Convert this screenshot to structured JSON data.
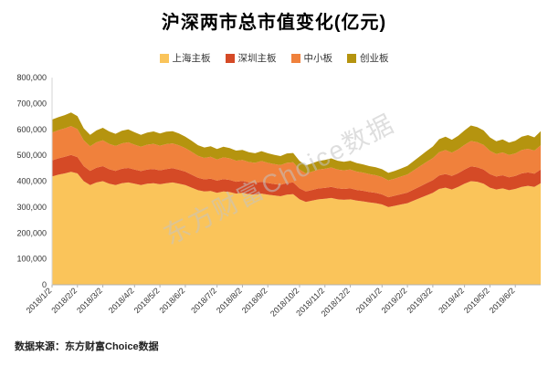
{
  "title": "沪深两市总市值变化(亿元)",
  "source_note": "数据来源：东方财富Choice数据",
  "watermark": "东方财富Choice数据",
  "colors": {
    "shanghai_main": "#FAC45A",
    "shenzhen_main": "#D54A26",
    "sme_board": "#F0813C",
    "chinext": "#B5940F",
    "axis_text": "#333333",
    "axis_line": "#b0b0b0",
    "watermark": "#c4c4c4"
  },
  "chart_data": {
    "type": "area",
    "stacked": true,
    "title": "沪深两市总市值变化(亿元)",
    "xlabel": "",
    "ylabel": "",
    "ylim": [
      0,
      800000
    ],
    "y_tick_step": 100000,
    "grid": false,
    "legend_position": "top",
    "x_tick_labels": [
      "2018/1/2",
      "2018/2/2",
      "2018/3/2",
      "2018/4/2",
      "2018/5/2",
      "2018/6/2",
      "2018/7/2",
      "2018/8/2",
      "2018/9/2",
      "2018/10/2",
      "2018/11/2",
      "2018/12/2",
      "2019/1/2",
      "2019/2/2",
      "2019/3/2",
      "2019/4/2",
      "2019/5/2",
      "2019/6/2"
    ],
    "x_tick_indices": [
      0,
      4,
      8,
      13,
      17,
      21,
      26,
      30,
      34,
      39,
      43,
      47,
      52,
      56,
      60,
      65,
      69,
      73
    ],
    "series": [
      {
        "name": "上海主板",
        "color": "#FAC45A",
        "values": [
          418000,
          425000,
          430000,
          436000,
          430000,
          400000,
          385000,
          395000,
          400000,
          390000,
          385000,
          392000,
          395000,
          390000,
          385000,
          390000,
          392000,
          388000,
          392000,
          395000,
          390000,
          385000,
          375000,
          365000,
          360000,
          362000,
          355000,
          360000,
          358000,
          352000,
          355000,
          350000,
          348000,
          352000,
          348000,
          345000,
          342000,
          348000,
          350000,
          330000,
          320000,
          325000,
          330000,
          332000,
          335000,
          330000,
          328000,
          330000,
          325000,
          322000,
          318000,
          315000,
          310000,
          300000,
          305000,
          310000,
          315000,
          325000,
          335000,
          345000,
          355000,
          370000,
          375000,
          368000,
          378000,
          390000,
          400000,
          398000,
          390000,
          375000,
          368000,
          372000,
          365000,
          370000,
          378000,
          382000,
          378000,
          392000
        ]
      },
      {
        "name": "深圳主板",
        "color": "#D54A26",
        "values": [
          62000,
          63000,
          64000,
          65000,
          63000,
          58000,
          55000,
          57000,
          58000,
          56000,
          55000,
          56000,
          56000,
          55000,
          54000,
          55000,
          55000,
          54000,
          55000,
          55000,
          54000,
          52000,
          50000,
          48000,
          47000,
          48000,
          47000,
          48000,
          47000,
          46000,
          46000,
          45000,
          45000,
          46000,
          45000,
          44000,
          44000,
          45000,
          45000,
          42000,
          40000,
          41000,
          42000,
          42000,
          43000,
          42000,
          42000,
          42000,
          41000,
          41000,
          40000,
          40000,
          39000,
          38000,
          39000,
          40000,
          41000,
          43000,
          45000,
          47000,
          49000,
          52000,
          53000,
          52000,
          53000,
          55000,
          57000,
          56000,
          55000,
          52000,
          50000,
          51000,
          50000,
          50000,
          52000,
          52000,
          51000,
          53000
        ]
      },
      {
        "name": "中小板",
        "color": "#F0813C",
        "values": [
          108000,
          109000,
          110000,
          112000,
          108000,
          100000,
          95000,
          98000,
          100000,
          98000,
          96000,
          98000,
          99000,
          96000,
          94000,
          96000,
          97000,
          95000,
          96000,
          96000,
          94000,
          91000,
          88000,
          85000,
          83000,
          84000,
          82000,
          84000,
          83000,
          81000,
          81000,
          79000,
          78000,
          80000,
          78000,
          77000,
          76000,
          78000,
          78000,
          73000,
          70000,
          71000,
          73000,
          74000,
          75000,
          73000,
          72000,
          73000,
          71000,
          70000,
          69000,
          68000,
          67000,
          65000,
          66000,
          68000,
          70000,
          74000,
          78000,
          82000,
          85000,
          90000,
          92000,
          90000,
          92000,
          95000,
          98000,
          97000,
          95000,
          90000,
          87000,
          88000,
          86000,
          87000,
          90000,
          91000,
          89000,
          93000
        ]
      },
      {
        "name": "创业板",
        "color": "#B5940F",
        "values": [
          50000,
          50000,
          51000,
          52000,
          50000,
          46000,
          44000,
          46000,
          48000,
          48000,
          47000,
          49000,
          50000,
          48000,
          46000,
          47000,
          48000,
          47000,
          48000,
          47000,
          46000,
          44000,
          43000,
          41000,
          40000,
          41000,
          40000,
          41000,
          40000,
          39000,
          39000,
          38000,
          37000,
          38000,
          37000,
          36000,
          35000,
          36000,
          36000,
          33000,
          31000,
          32000,
          33000,
          34000,
          35000,
          34000,
          33000,
          34000,
          33000,
          32000,
          31000,
          31000,
          30000,
          29000,
          30000,
          31000,
          33000,
          36000,
          39000,
          42000,
          45000,
          50000,
          52000,
          50000,
          52000,
          56000,
          60000,
          58000,
          56000,
          52000,
          49000,
          50000,
          48000,
          49000,
          52000,
          53000,
          51000,
          55000
        ]
      }
    ]
  }
}
